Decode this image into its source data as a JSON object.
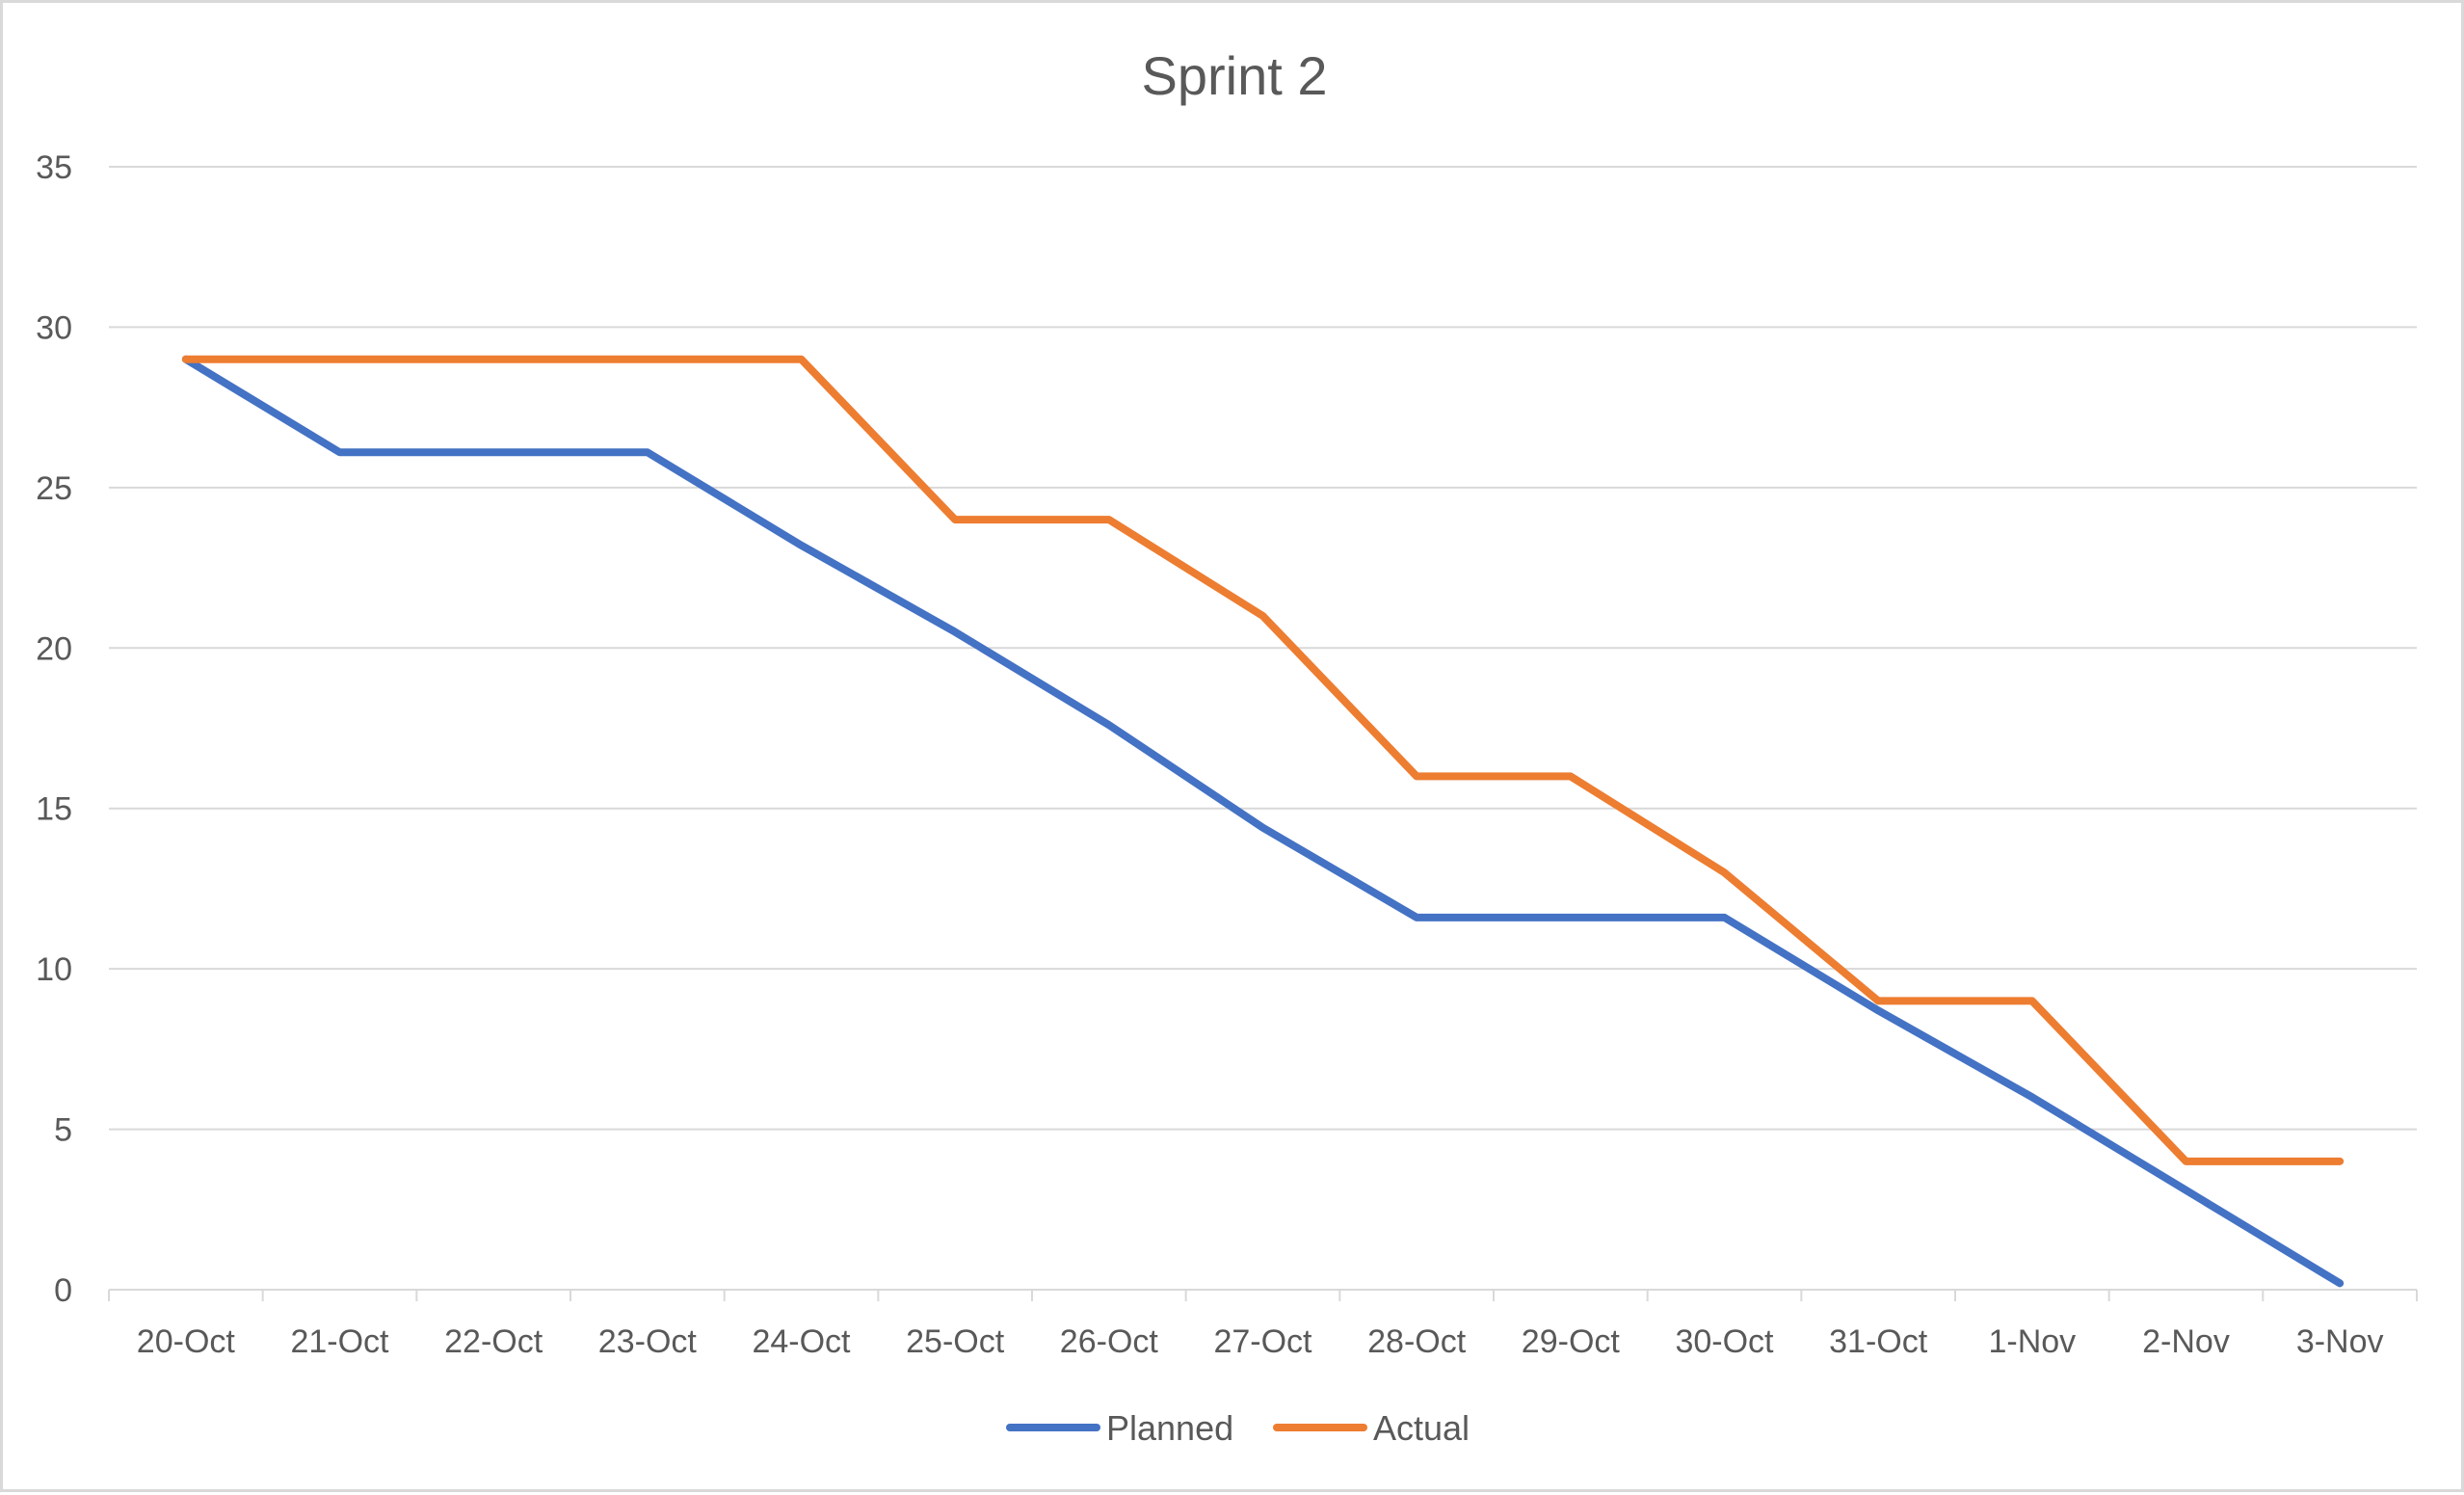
{
  "chart_data": {
    "type": "line",
    "title": "Sprint 2",
    "xlabel": "",
    "ylabel": "",
    "categories": [
      "20-Oct",
      "21-Oct",
      "22-Oct",
      "23-Oct",
      "24-Oct",
      "25-Oct",
      "26-Oct",
      "27-Oct",
      "28-Oct",
      "29-Oct",
      "30-Oct",
      "31-Oct",
      "1-Nov",
      "2-Nov",
      "3-Nov"
    ],
    "ylim": [
      0,
      35
    ],
    "yticks": [
      0,
      5,
      10,
      15,
      20,
      25,
      30,
      35
    ],
    "grid": true,
    "legend_position": "bottom",
    "series": [
      {
        "name": "Planned",
        "color": "#4472C4",
        "values": [
          29,
          26.1,
          26.1,
          26.1,
          23.2,
          20.5,
          17.6,
          14.4,
          11.6,
          11.6,
          11.6,
          8.7,
          6.0,
          3.1,
          0.2
        ]
      },
      {
        "name": "Actual",
        "color": "#ED7D31",
        "values": [
          29,
          29,
          29,
          29,
          29,
          24,
          24,
          21,
          16,
          16,
          13,
          9,
          9,
          4,
          4
        ]
      }
    ]
  }
}
